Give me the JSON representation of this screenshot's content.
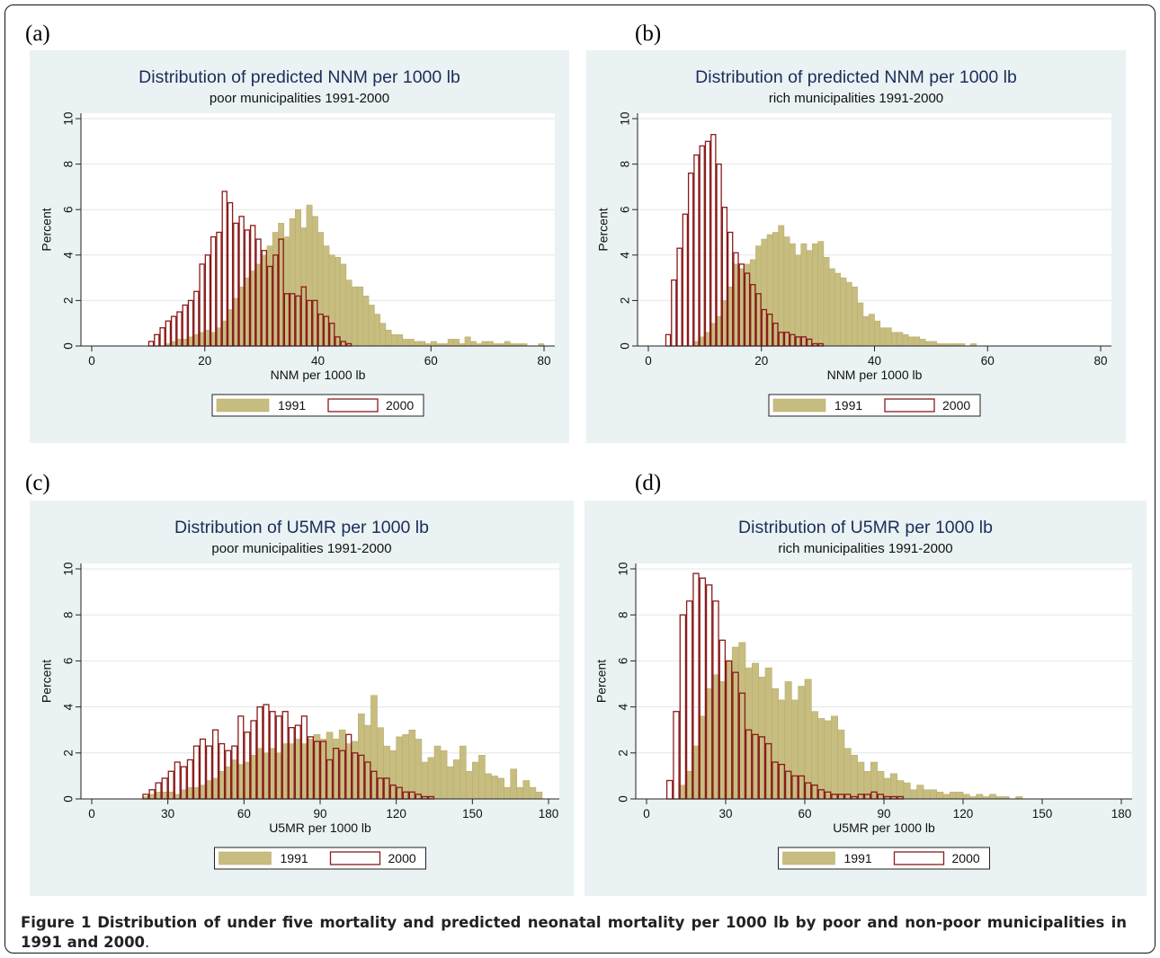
{
  "panel_letters": [
    "(a)",
    "(b)",
    "(c)",
    "(d)"
  ],
  "caption": {
    "figure_label": "Figure 1",
    "text": "Distribution of under five mortality and predicted neonatal mortality per 1000 lb by poor and non-poor municipalities in 1991 and 2000",
    "end": "."
  },
  "colors": {
    "panel_bg": "#eaf2f3",
    "plot_bg": "#ffffff",
    "title": "#1c2d5a",
    "bar_1991_fill": "#c7bd80",
    "bar_1991_edge": "#b9ae6c",
    "bar_2000_edge": "#8b1a1a",
    "grid": "#e6e6e6"
  },
  "chart_data": [
    {
      "type": "bar",
      "title": "Distribution of predicted NNM per 1000 lb",
      "subtitle": "poor municipalities 1991-2000",
      "xlabel": "NNM per 1000 lb",
      "ylabel": "Percent",
      "xlim": [
        0,
        80
      ],
      "ylim": [
        0,
        10
      ],
      "xticks": [
        "0",
        "20",
        "40",
        "60",
        "80"
      ],
      "yticks": [
        "0",
        "2",
        "4",
        "6",
        "8",
        "10"
      ],
      "bin_width": 1,
      "grid": true,
      "legend_position": "bottom",
      "series": [
        {
          "name": "1991",
          "style": "filled",
          "start": 13,
          "values": [
            0.1,
            0.2,
            0.3,
            0.3,
            0.4,
            0.5,
            0.6,
            0.7,
            0.6,
            0.8,
            1.1,
            1.6,
            2.1,
            2.6,
            3.0,
            3.3,
            3.6,
            4.0,
            4.4,
            5.0,
            5.4,
            4.8,
            5.6,
            6.0,
            5.2,
            6.2,
            5.7,
            5.0,
            4.4,
            4.0,
            3.9,
            3.6,
            2.9,
            2.6,
            2.6,
            2.2,
            1.8,
            1.4,
            1.0,
            0.7,
            0.5,
            0.5,
            0.3,
            0.3,
            0.2,
            0.2,
            0.1,
            0.2,
            0.1,
            0.1,
            0.3,
            0.3,
            0.1,
            0.4,
            0.2,
            0.1,
            0.2,
            0.2,
            0.1,
            0.1,
            0.2,
            0.1,
            0.1,
            0.1,
            0.0,
            0.0,
            0.1
          ]
        },
        {
          "name": "2000",
          "style": "outline",
          "start": 10,
          "values": [
            0.2,
            0.5,
            0.8,
            1.1,
            1.3,
            1.5,
            1.8,
            2.0,
            2.4,
            3.6,
            4.0,
            4.8,
            5.0,
            6.8,
            6.3,
            5.4,
            5.7,
            5.1,
            5.3,
            4.7,
            4.2,
            3.5,
            4.0,
            4.7,
            2.3,
            2.3,
            2.2,
            2.6,
            2.0,
            2.0,
            1.4,
            1.3,
            1.0,
            0.4,
            0.2,
            0.1
          ]
        }
      ]
    },
    {
      "type": "bar",
      "title": "Distribution of predicted NNM per 1000 lb",
      "subtitle": "rich municipalities 1991-2000",
      "xlabel": "NNM per 1000 lb",
      "ylabel": "Percent",
      "xlim": [
        0,
        80
      ],
      "ylim": [
        0,
        10
      ],
      "xticks": [
        "0",
        "20",
        "40",
        "60",
        "80"
      ],
      "yticks": [
        "0",
        "2",
        "4",
        "6",
        "8",
        "10"
      ],
      "bin_width": 1,
      "grid": true,
      "legend_position": "bottom",
      "series": [
        {
          "name": "1991",
          "style": "filled",
          "start": 8,
          "values": [
            0.2,
            0.4,
            0.6,
            1.0,
            1.3,
            2.0,
            2.6,
            3.6,
            3.4,
            3.6,
            3.8,
            4.4,
            4.7,
            4.9,
            5.0,
            5.3,
            4.8,
            4.5,
            4.0,
            4.5,
            4.2,
            4.5,
            4.6,
            3.9,
            3.4,
            3.2,
            3.0,
            2.8,
            2.6,
            1.9,
            1.3,
            1.4,
            1.1,
            0.8,
            0.8,
            0.6,
            0.6,
            0.5,
            0.4,
            0.4,
            0.3,
            0.2,
            0.2,
            0.1,
            0.1,
            0.1,
            0.1,
            0.1,
            0.0,
            0.1
          ]
        },
        {
          "name": "2000",
          "style": "outline",
          "start": 3,
          "values": [
            0.5,
            2.9,
            4.3,
            5.8,
            7.6,
            8.4,
            8.8,
            9.0,
            9.3,
            8.0,
            6.1,
            5.0,
            4.1,
            3.6,
            3.2,
            2.7,
            2.3,
            1.6,
            1.4,
            1.0,
            0.6,
            0.6,
            0.5,
            0.4,
            0.4,
            0.3,
            0.1,
            0.1
          ]
        }
      ]
    },
    {
      "type": "bar",
      "title": "Distribution of U5MR per 1000 lb",
      "subtitle": "poor municipalities 1991-2000",
      "xlabel": "U5MR per 1000 lb",
      "ylabel": "Percent",
      "xlim": [
        0,
        180
      ],
      "ylim": [
        0,
        10
      ],
      "xticks": [
        "0",
        "30",
        "60",
        "90",
        "120",
        "150",
        "180"
      ],
      "yticks": [
        "0",
        "2",
        "4",
        "6",
        "8",
        "10"
      ],
      "bin_width": 2.5,
      "grid": true,
      "legend_position": "bottom",
      "series": [
        {
          "name": "1991",
          "style": "filled",
          "start": 20,
          "values": [
            0.1,
            0.2,
            0.3,
            0.3,
            0.3,
            0.2,
            0.4,
            0.5,
            0.5,
            0.6,
            0.8,
            0.9,
            1.2,
            1.4,
            1.7,
            1.5,
            1.6,
            1.9,
            2.2,
            2.0,
            2.2,
            2.0,
            2.4,
            2.4,
            2.6,
            2.4,
            2.6,
            2.8,
            2.6,
            2.9,
            2.6,
            3.0,
            2.4,
            2.5,
            3.7,
            3.2,
            4.5,
            3.1,
            2.3,
            2.1,
            2.7,
            2.8,
            3.0,
            2.6,
            1.6,
            1.8,
            2.3,
            2.1,
            1.4,
            1.7,
            2.3,
            1.2,
            1.6,
            1.9,
            1.1,
            1.0,
            0.9,
            0.5,
            1.3,
            0.5,
            0.8,
            0.5,
            0.3
          ]
        },
        {
          "name": "2000",
          "style": "outline",
          "start": 20,
          "values": [
            0.2,
            0.4,
            0.7,
            0.9,
            1.2,
            1.6,
            1.4,
            1.7,
            2.3,
            2.6,
            2.3,
            3.0,
            2.4,
            2.1,
            2.3,
            3.6,
            2.9,
            3.4,
            4.0,
            4.1,
            3.8,
            3.6,
            3.8,
            3.1,
            3.2,
            3.6,
            2.7,
            2.5,
            2.5,
            1.7,
            2.2,
            2.1,
            2.8,
            2.0,
            1.9,
            1.6,
            1.2,
            0.9,
            0.9,
            0.6,
            0.5,
            0.3,
            0.3,
            0.2,
            0.1,
            0.1
          ]
        }
      ]
    },
    {
      "type": "bar",
      "title": "Distribution of U5MR per 1000 lb",
      "subtitle": "rich municipalities 1991-2000",
      "xlabel": "U5MR per 1000 lb",
      "ylabel": "Percent",
      "xlim": [
        0,
        180
      ],
      "ylim": [
        0,
        10
      ],
      "xticks": [
        "0",
        "30",
        "60",
        "90",
        "120",
        "150",
        "180"
      ],
      "yticks": [
        "0",
        "2",
        "4",
        "6",
        "8",
        "10"
      ],
      "bin_width": 2.5,
      "grid": true,
      "legend_position": "bottom",
      "series": [
        {
          "name": "1991",
          "style": "filled",
          "start": 12.5,
          "values": [
            0.6,
            1.2,
            2.3,
            3.6,
            4.8,
            5.4,
            5.1,
            6.0,
            6.6,
            6.8,
            5.7,
            5.9,
            5.3,
            5.7,
            4.8,
            4.3,
            5.1,
            4.3,
            4.9,
            5.2,
            3.8,
            3.5,
            3.4,
            3.6,
            3.0,
            2.2,
            1.9,
            1.6,
            1.2,
            1.6,
            1.2,
            0.9,
            1.1,
            0.8,
            0.7,
            0.4,
            0.6,
            0.4,
            0.4,
            0.3,
            0.2,
            0.3,
            0.3,
            0.2,
            0.1,
            0.2,
            0.1,
            0.2,
            0.1,
            0.1,
            0.0,
            0.1
          ]
        },
        {
          "name": "2000",
          "style": "outline",
          "start": 7.5,
          "values": [
            0.8,
            3.8,
            8.0,
            8.6,
            9.8,
            9.6,
            9.3,
            8.6,
            6.9,
            6.0,
            5.5,
            4.6,
            3.0,
            2.8,
            2.7,
            2.4,
            1.6,
            1.5,
            1.2,
            1.0,
            1.0,
            0.7,
            0.6,
            0.4,
            0.3,
            0.2,
            0.2,
            0.2,
            0.1,
            0.2,
            0.2,
            0.3,
            0.2,
            0.1,
            0.1,
            0.1
          ]
        }
      ]
    }
  ]
}
